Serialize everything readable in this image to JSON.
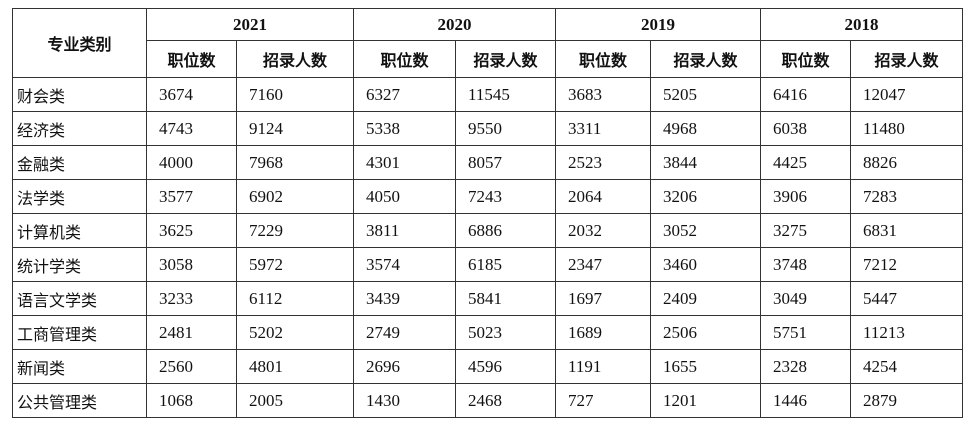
{
  "table": {
    "corner": "专业类别",
    "columns": [
      {
        "year": "2021",
        "sub": [
          "职位数",
          "招录人数"
        ]
      },
      {
        "year": "2020",
        "sub": [
          "职位数",
          "招录人数"
        ]
      },
      {
        "year": "2019",
        "sub": [
          "职位数",
          "招录人数"
        ]
      },
      {
        "year": "2018",
        "sub": [
          "职位数",
          "招录人数"
        ]
      }
    ],
    "rows": [
      {
        "name": "财会类",
        "values": [
          3674,
          7160,
          6327,
          11545,
          3683,
          5205,
          6416,
          12047
        ]
      },
      {
        "name": "经济类",
        "values": [
          4743,
          9124,
          5338,
          9550,
          3311,
          4968,
          6038,
          11480
        ]
      },
      {
        "name": "金融类",
        "values": [
          4000,
          7968,
          4301,
          8057,
          2523,
          3844,
          4425,
          8826
        ]
      },
      {
        "name": "法学类",
        "values": [
          3577,
          6902,
          4050,
          7243,
          2064,
          3206,
          3906,
          7283
        ]
      },
      {
        "name": "计算机类",
        "values": [
          3625,
          7229,
          3811,
          6886,
          2032,
          3052,
          3275,
          6831
        ]
      },
      {
        "name": "统计学类",
        "values": [
          3058,
          5972,
          3574,
          6185,
          2347,
          3460,
          3748,
          7212
        ]
      },
      {
        "name": "语言文学类",
        "values": [
          3233,
          6112,
          3439,
          5841,
          1697,
          2409,
          3049,
          5447
        ]
      },
      {
        "name": "工商管理类",
        "values": [
          2481,
          5202,
          2749,
          5023,
          1689,
          2506,
          5751,
          11213
        ]
      },
      {
        "name": "新闻类",
        "values": [
          2560,
          4801,
          2696,
          4596,
          1191,
          1655,
          2328,
          4254
        ]
      },
      {
        "name": "公共管理类",
        "values": [
          1068,
          2005,
          1430,
          2468,
          727,
          1201,
          1446,
          2879
        ]
      }
    ]
  }
}
